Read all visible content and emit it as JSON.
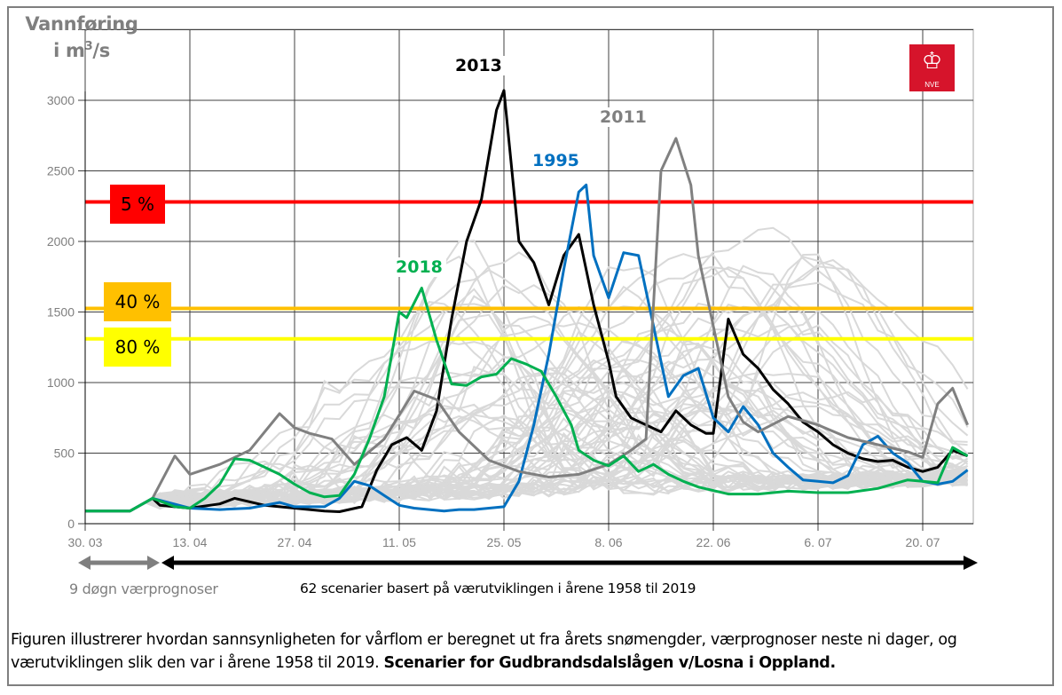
{
  "chart_data": {
    "type": "line",
    "title": "",
    "ylabel": "Vannføring i m³/s",
    "ylabel_line1": "Vannføring",
    "ylabel_line2_prefix": "i m",
    "ylabel_line2_sup": "3",
    "ylabel_line2_suffix": "/s",
    "xlabel": "",
    "ylim": [
      0,
      3500
    ],
    "yticks": [
      0,
      500,
      1000,
      1500,
      2000,
      2500,
      3000
    ],
    "ytick_labels": [
      "0",
      "500",
      "1000",
      "1500",
      "2000",
      "2500",
      "3000"
    ],
    "x_unit": "days since 30.03",
    "xlim": [
      0,
      118
    ],
    "xticks": [
      0,
      14,
      28,
      42,
      56,
      70,
      84,
      98,
      112
    ],
    "xtick_labels": [
      "30. 03",
      "13. 04",
      "27. 04",
      "11. 05",
      "25. 05",
      "8. 06",
      "22. 06",
      "6. 07",
      "20. 07"
    ],
    "grid": true,
    "thresholds": [
      {
        "label": "5 %",
        "value": 2280,
        "color": "#ff0000"
      },
      {
        "label": "40 %",
        "value": 1525,
        "color": "#ffc000"
      },
      {
        "label": "80 %",
        "value": 1310,
        "color": "#ffff00"
      }
    ],
    "scenario_count": 62,
    "scenario_color": "#d9d9d9",
    "series": [
      {
        "name": "2013",
        "color": "#000000",
        "x": [
          0,
          6,
          9,
          10,
          14,
          18,
          20,
          24,
          28,
          32,
          34,
          37,
          39,
          41,
          43,
          45,
          47,
          49,
          51,
          53,
          55,
          56,
          58,
          60,
          62,
          64,
          66,
          68,
          70,
          71,
          73,
          75,
          77,
          79,
          81,
          83,
          84,
          86,
          88,
          90,
          92,
          94,
          96,
          98,
          100,
          102,
          104,
          106,
          108,
          110,
          112,
          114,
          116,
          118
        ],
        "y": [
          90,
          90,
          180,
          130,
          110,
          140,
          180,
          130,
          110,
          90,
          85,
          120,
          380,
          560,
          610,
          520,
          800,
          1450,
          2000,
          2300,
          2930,
          3070,
          2000,
          1850,
          1550,
          1900,
          2050,
          1550,
          1150,
          900,
          750,
          700,
          650,
          800,
          700,
          640,
          640,
          1450,
          1200,
          1100,
          950,
          850,
          720,
          650,
          560,
          500,
          460,
          440,
          450,
          400,
          370,
          400,
          520,
          480
        ]
      },
      {
        "name": "1995",
        "color": "#0070c0",
        "x": [
          0,
          6,
          9,
          14,
          18,
          22,
          26,
          28,
          32,
          34,
          36,
          38,
          40,
          42,
          44,
          46,
          48,
          50,
          52,
          54,
          56,
          58,
          60,
          62,
          64,
          66,
          67,
          68,
          70,
          72,
          74,
          76,
          78,
          80,
          82,
          84,
          86,
          88,
          90,
          92,
          94,
          96,
          98,
          100,
          102,
          104,
          106,
          108,
          110,
          112,
          114,
          116,
          118
        ],
        "y": [
          90,
          90,
          180,
          110,
          100,
          110,
          150,
          120,
          120,
          180,
          300,
          270,
          200,
          130,
          110,
          100,
          90,
          100,
          100,
          110,
          120,
          300,
          700,
          1200,
          1800,
          2350,
          2400,
          1900,
          1600,
          1920,
          1900,
          1400,
          900,
          1050,
          1100,
          750,
          650,
          830,
          700,
          500,
          400,
          310,
          300,
          290,
          340,
          560,
          620,
          500,
          430,
          300,
          280,
          300,
          380
        ]
      },
      {
        "name": "2011",
        "color": "#808080",
        "x": [
          0,
          6,
          9,
          12,
          14,
          18,
          22,
          26,
          28,
          30,
          33,
          36,
          40,
          44,
          47,
          50,
          54,
          58,
          62,
          66,
          70,
          73,
          75,
          77,
          79,
          81,
          82,
          84,
          86,
          88,
          90,
          94,
          98,
          102,
          106,
          110,
          112,
          114,
          116,
          118
        ],
        "y": [
          90,
          90,
          180,
          480,
          350,
          420,
          520,
          780,
          680,
          640,
          600,
          420,
          600,
          940,
          880,
          650,
          450,
          370,
          330,
          350,
          420,
          520,
          600,
          2500,
          2730,
          2400,
          1900,
          1400,
          900,
          720,
          650,
          760,
          700,
          610,
          560,
          510,
          470,
          850,
          960,
          700
        ]
      },
      {
        "name": "2018",
        "color": "#00b050",
        "x": [
          0,
          6,
          9,
          12,
          14,
          16,
          18,
          20,
          22,
          24,
          26,
          28,
          30,
          32,
          34,
          36,
          38,
          40,
          41,
          42,
          43,
          45,
          47,
          49,
          51,
          53,
          55,
          57,
          59,
          61,
          63,
          65,
          66,
          68,
          70,
          72,
          74,
          76,
          78,
          80,
          82,
          86,
          90,
          94,
          98,
          102,
          106,
          110,
          112,
          114,
          116,
          118
        ],
        "y": [
          90,
          90,
          180,
          120,
          110,
          180,
          280,
          460,
          450,
          400,
          350,
          280,
          220,
          190,
          200,
          350,
          600,
          900,
          1200,
          1500,
          1460,
          1670,
          1300,
          990,
          980,
          1040,
          1060,
          1170,
          1130,
          1080,
          900,
          700,
          520,
          450,
          410,
          480,
          370,
          420,
          350,
          300,
          260,
          210,
          210,
          230,
          220,
          220,
          250,
          310,
          300,
          290,
          540,
          480
        ]
      }
    ],
    "annotations": [
      {
        "text": "2013",
        "series": "2013"
      },
      {
        "text": "1995",
        "series": "1995"
      },
      {
        "text": "2011",
        "series": "2011"
      },
      {
        "text": "2018",
        "series": "2018"
      }
    ]
  },
  "notes": {
    "forecast_period": "9 døgn værprognoser",
    "scenarios": "62 scenarier basert på værutviklingen i årene 1958 til 2019"
  },
  "caption": {
    "normal": "Figuren illustrerer hvordan sannsynligheten for vårflom er beregnet ut fra årets snømengder, værprognoser neste ni dager, og værutviklingen slik den var i årene 1958 til 2019. ",
    "bold": "Scenarier for Gudbrandsdalslågen v/Losna i Oppland."
  },
  "logo": {
    "text": "NVE",
    "icon": "crown-lion-icon",
    "color": "#d6142b"
  },
  "arrows": {
    "forecast_color": "#7f7f7f",
    "scenario_color": "#000000"
  }
}
